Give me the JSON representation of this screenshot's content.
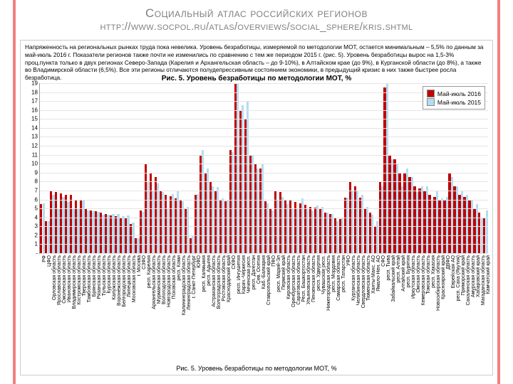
{
  "title_line1": "Социальный атлас российских регионов",
  "title_line2": "http://www.socpol.ru/atlas/overviews/social_sphere/kris.shtml",
  "description": "Напряженность на региональных рынках труда пока невелика. Уровень безработицы, измеряемой по методологии МОТ, остается минимальным – 5,5% по данным за май-июль 2016 г. Показатели регионов также почти не изменились по сравнению с тем же периодом 2015 г. (рис. 5). Уровень безработицы вырос на 1,5-3% проц.пункта только в двух регионах Северо-Запада (Карелия и Архангельская область – до 9-10%), в Алтайском крае (до 9%), в Курганской области (до 8%), а также во Владимирской области (6,5%). Все эти регионы отличаются полудепрессивным состоянием экономики, в предыдущий кризис в них также быстрее росла безработица.",
  "chart_title": "Рис. 5. Уровень безработицы по методологии МОТ, %",
  "caption": "Рис. 5. Уровень безработицы по методологии МОТ, %",
  "legend": {
    "s1": "Май-июль 2016",
    "s2": "Май-июль 2015"
  },
  "colors": {
    "s1": "#c00000",
    "s2": "#b4dcf0",
    "grid": "#e5e5e5",
    "bg": "#ffffff"
  },
  "ylim": [
    0,
    19
  ],
  "ytick_step": 1,
  "series": [
    {
      "label": "РФ",
      "v1": 5.5,
      "v2": 5.6
    },
    {
      "label": "ЦФО",
      "v1": 3.6,
      "v2": 3.6
    },
    {
      "label": "Орловская область",
      "v1": 7.0,
      "v2": 6.5
    },
    {
      "label": "Ярославская область",
      "v1": 6.8,
      "v2": 5.0
    },
    {
      "label": "Смоленская область",
      "v1": 6.7,
      "v2": 6.3
    },
    {
      "label": "Ивановская область",
      "v1": 6.5,
      "v2": 5.7
    },
    {
      "label": "Владимирская область",
      "v1": 6.5,
      "v2": 5.0
    },
    {
      "label": "Костромская область",
      "v1": 6.0,
      "v2": 5.0
    },
    {
      "label": "Тверская область",
      "v1": 5.9,
      "v2": 5.9
    },
    {
      "label": "Тамбовская область",
      "v1": 5.0,
      "v2": 4.8
    },
    {
      "label": "Брянская область",
      "v1": 4.8,
      "v2": 4.7
    },
    {
      "label": "Рязанская область",
      "v1": 4.7,
      "v2": 4.6
    },
    {
      "label": "Тульская область",
      "v1": 4.5,
      "v2": 4.3
    },
    {
      "label": "Курская область",
      "v1": 4.4,
      "v2": 4.3
    },
    {
      "label": "Калужская область",
      "v1": 4.2,
      "v2": 4.4
    },
    {
      "label": "Воронежская область",
      "v1": 4.1,
      "v2": 4.4
    },
    {
      "label": "Белгородская область",
      "v1": 4.0,
      "v2": 4.1
    },
    {
      "label": "Липецкая область",
      "v1": 3.9,
      "v2": 4.2
    },
    {
      "label": "Московская область",
      "v1": 3.3,
      "v2": 3.4
    },
    {
      "label": "г. Москва",
      "v1": 1.7,
      "v2": 1.7
    },
    {
      "label": "СЗФО",
      "v1": 4.8,
      "v2": 4.6
    },
    {
      "label": "респ. Карелия",
      "v1": 10.0,
      "v2": 8.0
    },
    {
      "label": "Архангельская область",
      "v1": 9.0,
      "v2": 7.0
    },
    {
      "label": "Мурманская область",
      "v1": 8.5,
      "v2": 7.8
    },
    {
      "label": "Вологодская область",
      "v1": 7.0,
      "v2": 6.8
    },
    {
      "label": "Новгородская область",
      "v1": 6.5,
      "v2": 5.0
    },
    {
      "label": "Псковская область",
      "v1": 6.4,
      "v2": 6.6
    },
    {
      "label": "респ. Коми",
      "v1": 6.1,
      "v2": 7.0
    },
    {
      "label": "Калининградская область",
      "v1": 5.9,
      "v2": 5.8
    },
    {
      "label": "Ленинградская область",
      "v1": 5.0,
      "v2": 5.2
    },
    {
      "label": "г. Санкт-Петербург",
      "v1": 1.7,
      "v2": 2.0
    },
    {
      "label": "ЮФО",
      "v1": 6.5,
      "v2": 6.6
    },
    {
      "label": "респ. Калмыкия",
      "v1": 11.0,
      "v2": 11.5
    },
    {
      "label": "респ. Адыгея",
      "v1": 9.0,
      "v2": 9.5
    },
    {
      "label": "Астраханская область",
      "v1": 8.0,
      "v2": 7.5
    },
    {
      "label": "Волгоградская область",
      "v1": 7.0,
      "v2": 7.4
    },
    {
      "label": "Ростовская область",
      "v1": 6.0,
      "v2": 6.1
    },
    {
      "label": "Краснодарский край",
      "v1": 5.8,
      "v2": 6.0
    },
    {
      "label": "СКФО",
      "v1": 11.5,
      "v2": 11.3
    },
    {
      "label": "респ. Ингушетия",
      "v1": 19.0,
      "v2": 19.0
    },
    {
      "label": "Карач.-Черкесия",
      "v1": 16.0,
      "v2": 16.5
    },
    {
      "label": "Чеченская респ.",
      "v1": 15.0,
      "v2": 17.0
    },
    {
      "label": "респ. Дагестан",
      "v1": 11.0,
      "v2": 11.0
    },
    {
      "label": "Сев. Осетия",
      "v1": 10.0,
      "v2": 9.5
    },
    {
      "label": "Каб.-Балкария",
      "v1": 9.5,
      "v2": 10.0
    },
    {
      "label": "Ставропольский край",
      "v1": 5.8,
      "v2": 5.6
    },
    {
      "label": "ПФО",
      "v1": 4.9,
      "v2": 4.8
    },
    {
      "label": "респ. Марий-Эл",
      "v1": 7.0,
      "v2": 6.0
    },
    {
      "label": "Пермский край",
      "v1": 6.8,
      "v2": 6.3
    },
    {
      "label": "Кировская область",
      "v1": 6.0,
      "v2": 5.5
    },
    {
      "label": "Оренбургская область",
      "v1": 5.9,
      "v2": 5.0
    },
    {
      "label": "Саратовская область",
      "v1": 5.7,
      "v2": 4.9
    },
    {
      "label": "Респ. Башкортостан",
      "v1": 5.6,
      "v2": 6.1
    },
    {
      "label": "Ульяновская область",
      "v1": 5.4,
      "v2": 5.0
    },
    {
      "label": "Пензенская область",
      "v1": 5.2,
      "v2": 4.8
    },
    {
      "label": "респ. Удмуртия",
      "v1": 5.1,
      "v2": 5.3
    },
    {
      "label": "Чувашская респ.",
      "v1": 5.0,
      "v2": 5.2
    },
    {
      "label": "Нижегородская область",
      "v1": 4.5,
      "v2": 4.5
    },
    {
      "label": "респ. Мордовия",
      "v1": 4.4,
      "v2": 4.4
    },
    {
      "label": "Самарская область",
      "v1": 3.9,
      "v2": 3.6
    },
    {
      "label": "респ. Татарстан",
      "v1": 3.8,
      "v2": 4.0
    },
    {
      "label": "УФО",
      "v1": 6.2,
      "v2": 6.2
    },
    {
      "label": "Курганская область",
      "v1": 8.0,
      "v2": 7.0
    },
    {
      "label": "Челябинская область",
      "v1": 7.5,
      "v2": 7.0
    },
    {
      "label": "Свердловская область",
      "v1": 6.2,
      "v2": 6.5
    },
    {
      "label": "Тюменская область",
      "v1": 5.0,
      "v2": 5.2
    },
    {
      "label": "Ханты-Манс. АО",
      "v1": 4.5,
      "v2": 4.3
    },
    {
      "label": "Ямало-Нен. АО",
      "v1": 3.0,
      "v2": 3.6
    },
    {
      "label": "СФО",
      "v1": 8.0,
      "v2": 7.5
    },
    {
      "label": "респ. Тыва",
      "v1": 18.5,
      "v2": 19.0
    },
    {
      "label": "Забайкальский край",
      "v1": 11.0,
      "v2": 10.5
    },
    {
      "label": "респ. Алтай",
      "v1": 10.5,
      "v2": 10.0
    },
    {
      "label": "Алтайский край",
      "v1": 9.0,
      "v2": 7.5
    },
    {
      "label": "респ. Бурятия",
      "v1": 9.0,
      "v2": 9.5
    },
    {
      "label": "Иркутская область",
      "v1": 8.5,
      "v2": 8.5
    },
    {
      "label": "Омская область",
      "v1": 7.5,
      "v2": 6.8
    },
    {
      "label": "Кемеровская область",
      "v1": 7.2,
      "v2": 7.5
    },
    {
      "label": "Томская область",
      "v1": 7.0,
      "v2": 7.5
    },
    {
      "label": "респ. Хакасия",
      "v1": 6.5,
      "v2": 6.0
    },
    {
      "label": "Новосибирская область",
      "v1": 6.3,
      "v2": 7.0
    },
    {
      "label": "Красноярский край",
      "v1": 6.0,
      "v2": 6.1
    },
    {
      "label": "ДВФО",
      "v1": 6.0,
      "v2": 6.3
    },
    {
      "label": "Еврейская АО",
      "v1": 9.0,
      "v2": 8.5
    },
    {
      "label": "респ. Саха (Якутия)",
      "v1": 7.5,
      "v2": 7.5
    },
    {
      "label": "Приморский край",
      "v1": 6.5,
      "v2": 7.0
    },
    {
      "label": "Сахалинская область",
      "v1": 6.3,
      "v2": 6.5
    },
    {
      "label": "Амурская область",
      "v1": 6.0,
      "v2": 6.0
    },
    {
      "label": "Хабаровский край",
      "v1": 5.0,
      "v2": 5.5
    },
    {
      "label": "Магаданская область",
      "v1": 4.5,
      "v2": 4.0
    },
    {
      "label": "Камчатский край",
      "v1": 4.0,
      "v2": 4.8
    }
  ]
}
